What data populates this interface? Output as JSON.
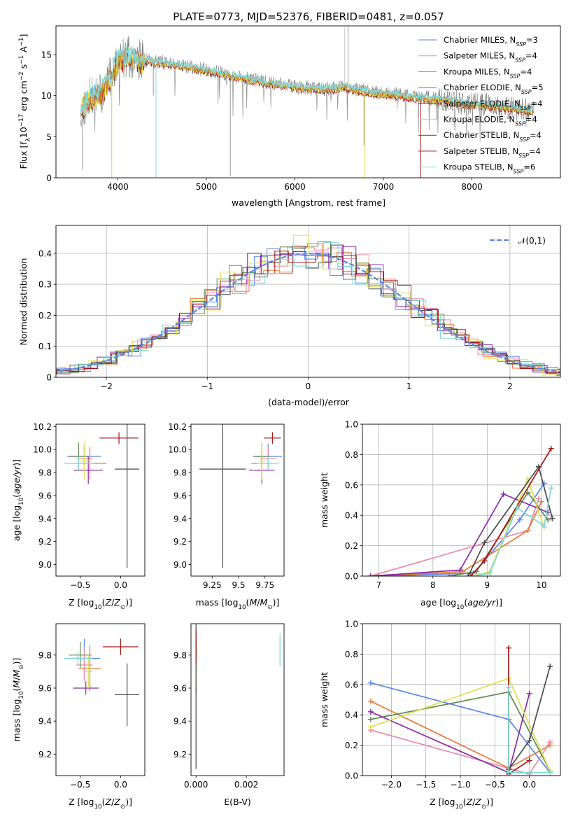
{
  "figure": {
    "title": "PLATE=0773, MJD=52376, FIBERID=0481, z=0.057"
  },
  "colors": {
    "Chabrier MILES": "#5b86e5",
    "Salpeter MILES": "#e98aa8",
    "Kroupa MILES": "#c9850f",
    "Chabrier ELODIE": "#5e8a52",
    "Salpeter ELODIE": "#8b2aa5",
    "Kroupa ELODIE": "#dfe04e",
    "Chabrier STELIB": "#4a4a4a",
    "Salpeter STELIB": "#a31515",
    "Kroupa STELIB": "#7fd6d9",
    "orange": "#e8793a"
  },
  "chart_data": [
    {
      "id": "spectrum",
      "type": "line",
      "title": "PLATE=0773, MJD=52376, FIBERID=0481, z=0.057",
      "xlabel": "wavelength [Angstrom, rest frame]",
      "ylabel": "Flux [f_λ 10^-17 erg cm^-2 s^-1 A^-1]",
      "xlim": [
        3300,
        9000
      ],
      "ylim": [
        0,
        18.5
      ],
      "xticks": [
        4000,
        5000,
        6000,
        7000,
        8000
      ],
      "yticks": [
        0,
        5,
        10,
        15
      ],
      "grid": false,
      "legend_position": "top-right",
      "series": [
        {
          "name": "Chabrier MILES, N_SSP=3",
          "color": "#5b86e5"
        },
        {
          "name": "Salpeter MILES, N_SSP=4",
          "color": "#e98aa8"
        },
        {
          "name": "Kroupa MILES, N_SSP=4",
          "color": "#c9850f"
        },
        {
          "name": "Chabrier ELODIE, N_SSP=5",
          "color": "#5e8a52"
        },
        {
          "name": "Salpeter ELODIE, N_SSP=4",
          "color": "#8b2aa5"
        },
        {
          "name": "Kroupa ELODIE, N_SSP=4",
          "color": "#dfe04e"
        },
        {
          "name": "Chabrier STELIB, N_SSP=4",
          "color": "#4a4a4a"
        },
        {
          "name": "Salpeter STELIB, N_SSP=4",
          "color": "#a31515"
        },
        {
          "name": "Kroupa STELIB, N_SSP=6",
          "color": "#7fd6d9"
        }
      ],
      "data_envelope": {
        "x": [
          3580,
          3700,
          3800,
          3900,
          3950,
          4000,
          4100,
          4200,
          4400,
          4600,
          4800,
          5000,
          5200,
          5400,
          5600,
          5800,
          6000,
          6200,
          6400,
          6563,
          6700,
          6900,
          7100,
          7300,
          7500,
          7700,
          7900,
          8100,
          8300,
          8500,
          8700
        ],
        "y": [
          9.5,
          11.0,
          11.2,
          13.0,
          14.0,
          15.2,
          16.0,
          15.5,
          15.3,
          15.0,
          14.6,
          14.2,
          13.8,
          13.3,
          12.9,
          12.5,
          12.2,
          12.0,
          11.9,
          12.3,
          11.8,
          11.5,
          11.3,
          11.0,
          10.8,
          10.6,
          10.2,
          10.0,
          9.8,
          9.5,
          9.3
        ]
      }
    },
    {
      "id": "residuals",
      "type": "line",
      "xlabel": "(data-model)/error",
      "ylabel": "Normed distribution",
      "xlim": [
        -2.5,
        2.5
      ],
      "ylim": [
        0,
        0.49
      ],
      "xticks": [
        -2,
        -1,
        0,
        1,
        2
      ],
      "yticks": [
        0.0,
        0.1,
        0.2,
        0.3,
        0.4
      ],
      "grid": true,
      "legend_position": "top-right",
      "legend": [
        "𝒩(0,1)"
      ],
      "reference_curve": "standard normal, sigma 1, dashed #5b86e5"
    },
    {
      "id": "age_vs_Z",
      "type": "scatter",
      "xlabel": "Z [log10(Z/Z_sun)]",
      "ylabel": "age [log10(age/yr)]",
      "xlim": [
        -0.8,
        0.3
      ],
      "ylim": [
        8.9,
        10.22
      ],
      "xticks": [
        -0.5,
        0.0
      ],
      "yticks": [
        9.0,
        9.2,
        9.4,
        9.6,
        9.8,
        10.0,
        10.2
      ],
      "points": [
        {
          "x": -0.45,
          "y": 9.94,
          "xerr": 0.21,
          "yerr": 0.11,
          "color": "#5b86e5"
        },
        {
          "x": -0.45,
          "y": 9.92,
          "xerr": 0.1,
          "yerr": 0.1,
          "color": "#e98aa8"
        },
        {
          "x": -0.38,
          "y": 9.88,
          "xerr": 0.2,
          "yerr": 0.14,
          "color": "#e8793a"
        },
        {
          "x": -0.52,
          "y": 9.94,
          "xerr": 0.12,
          "yerr": 0.12,
          "color": "#5e8a52"
        },
        {
          "x": -0.4,
          "y": 9.82,
          "xerr": 0.18,
          "yerr": 0.12,
          "color": "#8b2aa5"
        },
        {
          "x": -0.45,
          "y": 9.9,
          "xerr": 0.06,
          "yerr": 0.16,
          "color": "#dfe04e"
        },
        {
          "x": 0.08,
          "y": 9.83,
          "xerr": 0.15,
          "yerr": 0.86,
          "color": "#4a4a4a"
        },
        {
          "x": -0.02,
          "y": 10.1,
          "xerr": 0.24,
          "yerr": 0.05,
          "color": "#a31515"
        },
        {
          "x": -0.52,
          "y": 9.88,
          "xerr": 0.18,
          "yerr": 0.06,
          "color": "#7fd6d9"
        }
      ]
    },
    {
      "id": "age_vs_mass",
      "type": "scatter",
      "xlabel": "mass [log10(M/M_sun)]",
      "ylabel": "",
      "xlim": [
        9.05,
        9.93
      ],
      "ylim": [
        8.9,
        10.22
      ],
      "xticks": [
        9.25,
        9.5,
        9.75
      ],
      "yticks": [
        9.0,
        9.2,
        9.4,
        9.6,
        9.8,
        10.0,
        10.2
      ],
      "points": [
        {
          "x": 9.78,
          "y": 9.94,
          "xerr": 0.13,
          "yerr": 0.11,
          "color": "#5b86e5"
        },
        {
          "x": 9.78,
          "y": 9.92,
          "xerr": 0.08,
          "yerr": 0.1,
          "color": "#e98aa8"
        },
        {
          "x": 9.72,
          "y": 9.88,
          "xerr": 0.1,
          "yerr": 0.14,
          "color": "#e8793a"
        },
        {
          "x": 9.72,
          "y": 9.94,
          "xerr": 0.08,
          "yerr": 0.12,
          "color": "#5e8a52"
        },
        {
          "x": 9.72,
          "y": 9.82,
          "xerr": 0.12,
          "yerr": 0.12,
          "color": "#8b2aa5"
        },
        {
          "x": 9.72,
          "y": 9.9,
          "xerr": 0.04,
          "yerr": 0.16,
          "color": "#dfe04e"
        },
        {
          "x": 9.35,
          "y": 9.83,
          "xerr": 0.22,
          "yerr": 0.86,
          "color": "#4a4a4a"
        },
        {
          "x": 9.82,
          "y": 10.1,
          "xerr": 0.08,
          "yerr": 0.05,
          "color": "#a31515"
        },
        {
          "x": 9.78,
          "y": 9.88,
          "xerr": 0.1,
          "yerr": 0.06,
          "color": "#7fd6d9"
        }
      ]
    },
    {
      "id": "mass_weight_vs_age",
      "type": "line",
      "xlabel": "age [log10(age/yr)]",
      "ylabel": "mass weight",
      "xlim": [
        6.7,
        10.35
      ],
      "ylim": [
        0,
        1.0
      ],
      "xticks": [
        7,
        8,
        9,
        10
      ],
      "yticks": [
        0.0,
        0.2,
        0.4,
        0.6,
        0.8,
        1.0
      ],
      "grid": true,
      "series": [
        {
          "color": "#5b86e5",
          "x": [
            7.0,
            8.75,
            9.6,
            10.05
          ],
          "y": [
            0.0,
            0.02,
            0.37,
            0.61
          ]
        },
        {
          "color": "#e98aa8",
          "x": [
            6.85,
            9.75,
            9.95
          ],
          "y": [
            0.0,
            0.3,
            0.51
          ]
        },
        {
          "color": "#e8793a",
          "x": [
            7.0,
            8.55,
            9.75,
            10.0
          ],
          "y": [
            0.0,
            0.03,
            0.3,
            0.49
          ]
        },
        {
          "color": "#5e8a52",
          "x": [
            8.3,
            8.8,
            9.75,
            10.12
          ],
          "y": [
            0.0,
            0.03,
            0.55,
            0.37
          ]
        },
        {
          "color": "#8b2aa5",
          "x": [
            6.85,
            8.5,
            9.3,
            10.12
          ],
          "y": [
            0.0,
            0.04,
            0.54,
            0.42
          ]
        },
        {
          "color": "#dfe04e",
          "x": [
            8.75,
            9.05,
            9.75,
            10.05
          ],
          "y": [
            0.0,
            0.03,
            0.64,
            0.32
          ]
        },
        {
          "color": "#4a4a4a",
          "x": [
            8.65,
            8.95,
            9.95,
            10.2
          ],
          "y": [
            0.0,
            0.22,
            0.72,
            0.38
          ]
        },
        {
          "color": "#a31515",
          "x": [
            8.7,
            8.95,
            10.18
          ],
          "y": [
            0.0,
            0.1,
            0.84
          ]
        },
        {
          "color": "#7fd6d9",
          "x": [
            8.75,
            9.05,
            9.55,
            10.05,
            10.18
          ],
          "y": [
            0.0,
            0.02,
            0.45,
            0.33,
            0.58
          ]
        }
      ]
    },
    {
      "id": "mass_vs_Z",
      "type": "scatter",
      "xlabel": "Z [log10(Z/Z_sun)]",
      "ylabel": "mass [log10(M/M_sun)]",
      "xlim": [
        -0.8,
        0.3
      ],
      "ylim": [
        9.07,
        9.99
      ],
      "xticks": [
        -0.5,
        0.0
      ],
      "yticks": [
        9.2,
        9.4,
        9.6,
        9.8
      ],
      "points": [
        {
          "x": -0.45,
          "y": 9.78,
          "xerr": 0.2,
          "yerr": 0.12,
          "color": "#5b86e5"
        },
        {
          "x": -0.45,
          "y": 9.74,
          "xerr": 0.1,
          "yerr": 0.1,
          "color": "#e98aa8"
        },
        {
          "x": -0.38,
          "y": 9.72,
          "xerr": 0.14,
          "yerr": 0.14,
          "color": "#e8793a"
        },
        {
          "x": -0.5,
          "y": 9.8,
          "xerr": 0.14,
          "yerr": 0.08,
          "color": "#5e8a52"
        },
        {
          "x": -0.43,
          "y": 9.6,
          "xerr": 0.16,
          "yerr": 0.04,
          "color": "#8b2aa5"
        },
        {
          "x": -0.4,
          "y": 9.7,
          "xerr": 0.05,
          "yerr": 0.1,
          "color": "#dfe04e"
        },
        {
          "x": 0.08,
          "y": 9.56,
          "xerr": 0.15,
          "yerr": 0.19,
          "color": "#4a4a4a"
        },
        {
          "x": 0.0,
          "y": 9.85,
          "xerr": 0.22,
          "yerr": 0.05,
          "color": "#a31515"
        },
        {
          "x": -0.53,
          "y": 9.78,
          "xerr": 0.17,
          "yerr": 0.04,
          "color": "#7fd6d9"
        }
      ]
    },
    {
      "id": "mass_vs_ebv",
      "type": "scatter",
      "xlabel": "E(B-V)",
      "ylabel": "",
      "xlim": [
        -0.0002,
        0.0035
      ],
      "ylim": [
        9.07,
        9.99
      ],
      "xticks": [
        0.0,
        0.002
      ],
      "yticks": [
        9.2,
        9.4,
        9.6,
        9.8
      ],
      "points": [
        {
          "x": 0.0,
          "y": 9.78,
          "xerr": 0,
          "yerr": 0.12,
          "color": "#5b86e5"
        },
        {
          "x": 0.0,
          "y": 9.74,
          "xerr": 0,
          "yerr": 0.1,
          "color": "#e98aa8"
        },
        {
          "x": 0.0,
          "y": 9.72,
          "xerr": 0,
          "yerr": 0.14,
          "color": "#e8793a"
        },
        {
          "x": 0.0,
          "y": 9.8,
          "xerr": 0,
          "yerr": 0.08,
          "color": "#5e8a52"
        },
        {
          "x": 0.0,
          "y": 9.6,
          "xerr": 0,
          "yerr": 0.04,
          "color": "#8b2aa5"
        },
        {
          "x": 0.0,
          "y": 9.7,
          "xerr": 0,
          "yerr": 0.1,
          "color": "#dfe04e"
        },
        {
          "x": 0.0,
          "y": 9.56,
          "xerr": 0,
          "yerr": 0.45,
          "color": "#4a4a4a"
        },
        {
          "x": 0.0,
          "y": 9.85,
          "xerr": 0,
          "yerr": 0.1,
          "color": "#a31515"
        },
        {
          "x": 0.00334,
          "y": 9.83,
          "xerr": 0,
          "yerr": 0.1,
          "color": "#7fd6d9"
        }
      ]
    },
    {
      "id": "mass_weight_vs_Z",
      "type": "line",
      "xlabel": "Z [log10(Z/Z_sun)]",
      "ylabel": "mass weight",
      "xlim": [
        -2.42,
        0.45
      ],
      "ylim": [
        0,
        1.0
      ],
      "xticks": [
        -2.0,
        -1.5,
        -1.0,
        -0.5,
        0.0
      ],
      "yticks": [
        0.0,
        0.2,
        0.4,
        0.6,
        0.8,
        1.0
      ],
      "grid": true,
      "series": [
        {
          "color": "#5b86e5",
          "x": [
            -2.3,
            -0.3,
            0.3
          ],
          "y": [
            0.61,
            0.37,
            0.02
          ]
        },
        {
          "color": "#e98aa8",
          "x": [
            -2.3,
            0.0,
            0.3
          ],
          "y": [
            0.3,
            0.01,
            0.22
          ]
        },
        {
          "color": "#e8793a",
          "x": [
            -2.3,
            -0.3,
            0.3
          ],
          "y": [
            0.49,
            0.05,
            0.2
          ]
        },
        {
          "color": "#5e8a52",
          "x": [
            -2.3,
            -0.3,
            0.3
          ],
          "y": [
            0.37,
            0.55,
            0.03
          ]
        },
        {
          "color": "#8b2aa5",
          "x": [
            -2.3,
            -0.3,
            0.0
          ],
          "y": [
            0.42,
            0.02,
            0.54
          ]
        },
        {
          "color": "#dfe04e",
          "x": [
            -2.3,
            -0.3,
            0.3
          ],
          "y": [
            0.32,
            0.64,
            0.03
          ]
        },
        {
          "color": "#4a4a4a",
          "x": [
            -0.3,
            0.0,
            0.3
          ],
          "y": [
            0.04,
            0.23,
            0.72
          ]
        },
        {
          "color": "#a31515",
          "x": [
            -0.3,
            -0.3,
            0.0
          ],
          "y": [
            0.84,
            0.01,
            0.1
          ]
        },
        {
          "color": "#7fd6d9",
          "x": [
            -0.3,
            -0.3,
            0.3
          ],
          "y": [
            0.58,
            0.02,
            0.02
          ]
        }
      ]
    }
  ]
}
